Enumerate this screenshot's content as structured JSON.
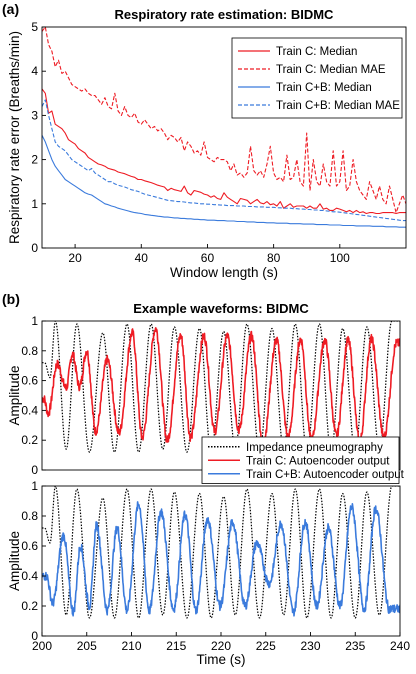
{
  "panel_a_label": "(a)",
  "panel_b_label": "(b)",
  "chart_data": [
    {
      "type": "line",
      "title": "Respiratory rate estimation: BIDMC",
      "xlabel": "Window length (s)",
      "ylabel": "Respiratory rate error (Breaths/min)",
      "xlim": [
        10,
        120
      ],
      "ylim": [
        0,
        5
      ],
      "xticks": [
        20,
        40,
        60,
        80,
        100
      ],
      "yticks": [
        0,
        1,
        2,
        3,
        4,
        5
      ],
      "legend_position": "top-right",
      "x": [
        10,
        11,
        12,
        13,
        14,
        15,
        16,
        17,
        18,
        19,
        20,
        21,
        22,
        23,
        24,
        25,
        26,
        27,
        28,
        29,
        30,
        31,
        32,
        33,
        34,
        35,
        36,
        37,
        38,
        39,
        40,
        41,
        42,
        43,
        44,
        45,
        46,
        47,
        48,
        49,
        50,
        51,
        52,
        53,
        54,
        55,
        56,
        57,
        58,
        59,
        60,
        61,
        62,
        63,
        64,
        65,
        66,
        67,
        68,
        69,
        70,
        71,
        72,
        73,
        74,
        75,
        76,
        77,
        78,
        79,
        80,
        81,
        82,
        83,
        84,
        85,
        86,
        87,
        88,
        89,
        90,
        91,
        92,
        93,
        94,
        95,
        96,
        97,
        98,
        99,
        100,
        101,
        102,
        103,
        104,
        105,
        106,
        107,
        108,
        109,
        110,
        111,
        112,
        113,
        114,
        115,
        116,
        117,
        118,
        119,
        120
      ],
      "series": [
        {
          "name": "Train C: Median",
          "color": "#ee1c24",
          "dash": "solid",
          "values": [
            3.6,
            3.5,
            3.05,
            3.1,
            2.8,
            2.75,
            2.7,
            2.6,
            2.45,
            2.4,
            2.35,
            2.25,
            2.2,
            2.15,
            2.05,
            2.0,
            1.95,
            1.9,
            1.88,
            1.85,
            1.8,
            1.78,
            1.76,
            1.72,
            1.7,
            1.68,
            1.65,
            1.62,
            1.6,
            1.55,
            1.55,
            1.52,
            1.5,
            1.48,
            1.45,
            1.42,
            1.4,
            1.38,
            1.3,
            1.35,
            1.32,
            1.3,
            1.28,
            1.4,
            1.25,
            1.2,
            1.3,
            1.28,
            1.26,
            1.22,
            1.2,
            1.15,
            1.18,
            1.12,
            1.1,
            1.25,
            1.15,
            1.1,
            1.05,
            1.0,
            1.12,
            1.1,
            1.08,
            1.0,
            1.05,
            1.1,
            1.02,
            1.0,
            1.05,
            0.98,
            1.0,
            0.95,
            1.05,
            0.9,
            0.95,
            1.0,
            0.92,
            0.95,
            0.95,
            0.95,
            0.9,
            0.95,
            0.9,
            0.9,
            1.0,
            0.88,
            0.9,
            0.85,
            0.85,
            0.9,
            0.88,
            0.85,
            0.82,
            0.85,
            0.8,
            0.85,
            0.8,
            0.82,
            0.78,
            0.8,
            0.8,
            0.78,
            0.78,
            0.8,
            0.8,
            0.8,
            0.8,
            0.78,
            0.8,
            0.8,
            0.8
          ]
        },
        {
          "name": "Train C: Median MAE",
          "color": "#ee1c24",
          "dash": "dashed",
          "values": [
            4.9,
            5.0,
            4.6,
            4.45,
            4.1,
            4.25,
            3.95,
            4.0,
            3.85,
            3.7,
            3.65,
            3.6,
            3.55,
            3.6,
            3.5,
            3.45,
            3.45,
            3.35,
            3.25,
            3.4,
            3.2,
            3.15,
            3.5,
            3.1,
            3.0,
            3.2,
            3.0,
            2.95,
            3.05,
            2.85,
            2.8,
            2.9,
            2.8,
            2.7,
            2.75,
            2.65,
            2.7,
            2.6,
            2.45,
            2.55,
            2.5,
            2.4,
            2.5,
            2.2,
            2.4,
            2.3,
            2.15,
            2.2,
            2.1,
            2.4,
            2.05,
            2.0,
            1.95,
            2.05,
            2.0,
            2.0,
            1.95,
            1.75,
            1.9,
            1.65,
            1.7,
            1.6,
            1.7,
            2.3,
            1.75,
            1.65,
            1.75,
            1.6,
            1.9,
            2.3,
            1.7,
            1.55,
            1.6,
            1.5,
            2.1,
            1.55,
            1.6,
            2.0,
            1.5,
            1.4,
            2.6,
            1.3,
            2.0,
            1.5,
            1.4,
            1.9,
            1.5,
            1.4,
            2.2,
            1.4,
            1.5,
            2.2,
            1.3,
            1.4,
            2.0,
            1.5,
            1.3,
            1.2,
            1.1,
            1.5,
            1.3,
            1.1,
            1.4,
            1.1,
            1.0,
            1.4,
            1.1,
            0.8,
            1.0,
            1.2,
            1.0
          ]
        },
        {
          "name": "Train C+B: Median",
          "color": "#3b7bdc",
          "dash": "solid",
          "values": [
            2.55,
            2.4,
            2.2,
            2.0,
            1.85,
            1.75,
            1.65,
            1.55,
            1.5,
            1.45,
            1.4,
            1.35,
            1.3,
            1.25,
            1.22,
            1.2,
            1.15,
            1.1,
            1.05,
            1.0,
            0.98,
            0.95,
            0.93,
            0.9,
            0.88,
            0.86,
            0.84,
            0.82,
            0.8,
            0.79,
            0.78,
            0.76,
            0.75,
            0.74,
            0.73,
            0.72,
            0.71,
            0.7,
            0.7,
            0.69,
            0.68,
            0.68,
            0.67,
            0.67,
            0.66,
            0.66,
            0.65,
            0.65,
            0.64,
            0.64,
            0.63,
            0.63,
            0.63,
            0.62,
            0.62,
            0.62,
            0.61,
            0.61,
            0.61,
            0.6,
            0.6,
            0.6,
            0.59,
            0.59,
            0.59,
            0.58,
            0.58,
            0.58,
            0.57,
            0.57,
            0.57,
            0.56,
            0.56,
            0.56,
            0.56,
            0.55,
            0.55,
            0.55,
            0.55,
            0.54,
            0.54,
            0.54,
            0.54,
            0.53,
            0.53,
            0.53,
            0.53,
            0.52,
            0.52,
            0.52,
            0.52,
            0.51,
            0.51,
            0.51,
            0.51,
            0.5,
            0.5,
            0.5,
            0.5,
            0.5,
            0.49,
            0.49,
            0.49,
            0.49,
            0.48,
            0.48,
            0.48,
            0.48,
            0.47,
            0.47,
            0.47
          ]
        },
        {
          "name": "Train C+B: Median MAE",
          "color": "#3b7bdc",
          "dash": "dashed",
          "values": [
            3.2,
            3.35,
            3.0,
            2.7,
            2.4,
            2.3,
            2.25,
            2.2,
            2.1,
            2.0,
            1.95,
            1.9,
            1.85,
            1.8,
            1.75,
            1.8,
            1.7,
            1.65,
            1.6,
            1.55,
            1.5,
            1.5,
            1.45,
            1.42,
            1.4,
            1.38,
            1.35,
            1.32,
            1.3,
            1.28,
            1.25,
            1.22,
            1.2,
            1.18,
            1.16,
            1.14,
            1.12,
            1.1,
            1.08,
            1.07,
            1.06,
            1.05,
            1.05,
            1.04,
            1.03,
            1.02,
            1.02,
            1.01,
            1.0,
            1.0,
            0.99,
            0.99,
            0.98,
            0.98,
            0.97,
            0.97,
            0.96,
            0.96,
            0.96,
            0.95,
            0.95,
            0.95,
            0.94,
            0.94,
            0.94,
            0.93,
            0.93,
            0.93,
            0.92,
            0.92,
            0.92,
            0.91,
            0.91,
            0.9,
            0.9,
            0.9,
            0.89,
            0.89,
            0.88,
            0.88,
            0.87,
            0.87,
            0.86,
            0.86,
            0.85,
            0.85,
            0.84,
            0.83,
            0.82,
            0.82,
            0.81,
            0.8,
            0.79,
            0.78,
            0.77,
            0.76,
            0.75,
            0.74,
            0.73,
            0.72,
            0.71,
            0.7,
            0.69,
            0.68,
            0.67,
            0.66,
            0.65,
            0.64,
            0.63,
            0.62,
            0.62
          ]
        }
      ]
    },
    {
      "type": "line",
      "title": "Example waveforms: BIDMC",
      "xlabel": "",
      "ylabel": "Amplitude",
      "xlim": [
        200,
        240
      ],
      "ylim": [
        0,
        1
      ],
      "xticks": [],
      "yticks": [
        0,
        0.2,
        0.4,
        0.6,
        0.8,
        1
      ],
      "legend_position": "bottom-right",
      "series": [
        {
          "name": "Impedance pneumography",
          "color": "#000000",
          "dash": "dotted",
          "peaks": [
            200.3,
            201.5,
            203.9,
            206.8,
            209.5,
            212.2,
            214.8,
            217.6,
            220.3,
            222.9,
            225.7,
            228.3,
            231.0,
            233.6,
            236.3,
            239.1
          ],
          "troughs": [
            200.9,
            202.7,
            205.3,
            208.1,
            210.8,
            213.5,
            216.2,
            218.9,
            221.6,
            224.3,
            227.0,
            229.6,
            232.3,
            235.0,
            237.7
          ],
          "peak_values": [
            0.72,
            1.0,
            0.98,
            0.92,
            0.98,
            0.98,
            0.96,
            0.95,
            0.93,
            0.98,
            0.95,
            0.98,
            0.98,
            0.95,
            0.96,
            1.0
          ],
          "trough_values": [
            0.62,
            0.14,
            0.12,
            0.12,
            0.12,
            0.14,
            0.12,
            0.12,
            0.14,
            0.12,
            0.14,
            0.12,
            0.12,
            0.12,
            0.14
          ]
        },
        {
          "name": "Train C: Autoencoder output",
          "color": "#ee1c24",
          "dash": "solid",
          "peaks": [
            200.2,
            201.7,
            203.4,
            205.0,
            207.3,
            210.1,
            212.7,
            215.5,
            218.1,
            220.7,
            223.4,
            226.2,
            228.9,
            231.6,
            234.2,
            236.8,
            239.6
          ],
          "troughs": [
            200.7,
            202.7,
            204.2,
            206.0,
            208.6,
            211.2,
            214.0,
            216.6,
            219.3,
            222.0,
            224.7,
            227.5,
            230.1,
            232.9,
            235.5,
            238.2
          ],
          "peak_values": [
            0.48,
            0.71,
            0.78,
            0.8,
            0.74,
            0.92,
            0.95,
            0.9,
            0.9,
            0.9,
            0.9,
            0.87,
            0.88,
            0.87,
            0.87,
            0.88,
            0.85
          ],
          "trough_values": [
            0.38,
            0.55,
            0.56,
            0.26,
            0.25,
            0.22,
            0.2,
            0.22,
            0.26,
            0.27,
            0.18,
            0.22,
            0.2,
            0.23,
            0.19,
            0.22
          ]
        }
      ]
    },
    {
      "type": "line",
      "title": "",
      "xlabel": "Time (s)",
      "ylabel": "Amplitude",
      "xlim": [
        200,
        240
      ],
      "ylim": [
        0,
        1
      ],
      "xticks": [
        200,
        205,
        210,
        215,
        220,
        225,
        230,
        235,
        240
      ],
      "yticks": [
        0,
        0.2,
        0.4,
        0.6,
        0.8,
        1
      ],
      "legend_position": "top-right",
      "series": [
        {
          "name": "Impedance pneumography",
          "color": "#000000",
          "dash": "dotted",
          "peaks": [
            200.3,
            201.5,
            203.9,
            206.8,
            209.5,
            212.2,
            214.8,
            217.6,
            220.3,
            222.9,
            225.7,
            228.3,
            231.0,
            233.6,
            236.3,
            239.1
          ],
          "troughs": [
            200.9,
            202.7,
            205.3,
            208.1,
            210.8,
            213.5,
            216.2,
            218.9,
            221.6,
            224.3,
            227.0,
            229.6,
            232.3,
            235.0,
            237.7
          ],
          "peak_values": [
            0.72,
            1.0,
            0.98,
            0.92,
            0.98,
            0.98,
            0.96,
            0.95,
            0.93,
            0.98,
            0.95,
            0.98,
            0.98,
            0.95,
            0.96,
            1.0
          ],
          "trough_values": [
            0.62,
            0.14,
            0.12,
            0.12,
            0.12,
            0.14,
            0.12,
            0.12,
            0.14,
            0.12,
            0.14,
            0.12,
            0.12,
            0.12,
            0.14
          ]
        },
        {
          "name": "Train C+B: Autoencoder output",
          "color": "#3b7bdc",
          "dash": "solid",
          "peaks": [
            200.5,
            202.4,
            204.3,
            206.1,
            208.4,
            210.8,
            213.3,
            216.0,
            218.5,
            221.3,
            224.0,
            226.7,
            229.4,
            232.0,
            234.6,
            237.3
          ],
          "troughs": [
            201.2,
            203.5,
            205.3,
            207.3,
            209.5,
            212.0,
            214.7,
            217.2,
            219.9,
            222.7,
            225.4,
            228.1,
            230.7,
            233.3,
            236.0,
            238.8
          ],
          "peak_values": [
            0.4,
            0.67,
            0.6,
            0.74,
            0.72,
            0.88,
            0.83,
            0.81,
            0.78,
            0.76,
            0.62,
            0.75,
            0.76,
            0.72,
            0.86,
            0.85
          ],
          "trough_values": [
            0.22,
            0.16,
            0.2,
            0.17,
            0.17,
            0.17,
            0.18,
            0.17,
            0.2,
            0.2,
            0.35,
            0.16,
            0.2,
            0.2,
            0.18,
            0.18
          ]
        }
      ]
    }
  ]
}
